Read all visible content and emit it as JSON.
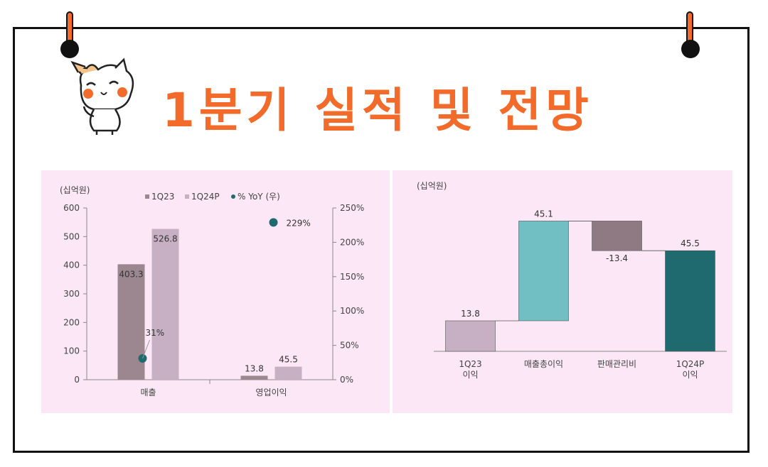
{
  "header": {
    "title": "1분기 실적 및 전망"
  },
  "chart_data": [
    {
      "type": "bar",
      "unit_label": "(십억원)",
      "categories": [
        "매출",
        "영업이익"
      ],
      "series": [
        {
          "name": "1Q23",
          "values": [
            403.3,
            13.8
          ],
          "labels": [
            "403.3",
            "13.8"
          ],
          "color": "#9c8790"
        },
        {
          "name": "1Q24P",
          "values": [
            526.8,
            45.5
          ],
          "labels": [
            "526.8",
            "45.5"
          ],
          "color": "#c8b0c4"
        },
        {
          "name": "% YoY (우)",
          "type": "scatter",
          "values": [
            31,
            229
          ],
          "labels": [
            "31%",
            "229%"
          ],
          "color": "#1e6a6e"
        }
      ],
      "ylim": [
        0,
        600
      ],
      "yticks": [
        "0",
        "100",
        "200",
        "300",
        "400",
        "500",
        "600"
      ],
      "y2lim": [
        0,
        250
      ],
      "y2ticks": [
        "0%",
        "50%",
        "100%",
        "150%",
        "200%",
        "250%"
      ],
      "legend_position": "top"
    },
    {
      "type": "waterfall",
      "unit_label": "(십억원)",
      "categories": [
        "1Q23\n이익",
        "매출총이익",
        "판매관리비",
        "1Q24P\n이익"
      ],
      "values": [
        13.8,
        45.1,
        -13.4,
        45.5
      ],
      "labels": [
        "13.8",
        "45.1",
        "-13.4",
        "45.5"
      ],
      "colors": [
        "#c8b0c4",
        "#72bfc3",
        "#8f7a84",
        "#1e6a6e"
      ]
    }
  ]
}
